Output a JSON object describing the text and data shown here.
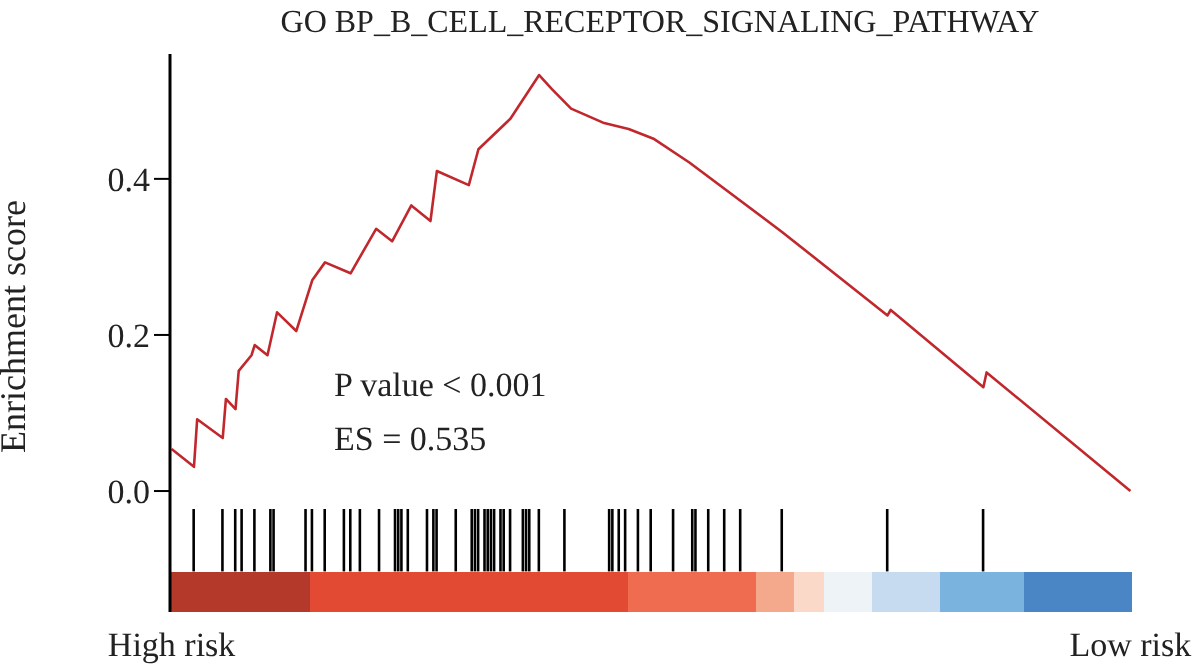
{
  "chart_data": {
    "type": "line",
    "title": "GO BP_B_CELL_RECEPTOR_SIGNALING_PATHWAY",
    "ylabel": "Enrichment score",
    "annotations": [
      "P value < 0.001",
      "ES = 0.535"
    ],
    "categories": [
      "High risk",
      null,
      null,
      null,
      null,
      null,
      null,
      null,
      null,
      null,
      null,
      null,
      null,
      null,
      null,
      null,
      null,
      null,
      null,
      null,
      null,
      null,
      null,
      null,
      null,
      null,
      null,
      null,
      null,
      null,
      null,
      null,
      null,
      null,
      null,
      null,
      null,
      null,
      null,
      null,
      null,
      null,
      null,
      null,
      null,
      null,
      null,
      null,
      null,
      null,
      null,
      null,
      null,
      null,
      null,
      null,
      null,
      null,
      null,
      null,
      null,
      null,
      null,
      null,
      null,
      null,
      null,
      null,
      null,
      null,
      null,
      null,
      null,
      null,
      null,
      null,
      null,
      null,
      null,
      null,
      null,
      null,
      null,
      null,
      null,
      null,
      null,
      null,
      null,
      null,
      null,
      null,
      null,
      null,
      null,
      null,
      null,
      null,
      null,
      null,
      null,
      null,
      null,
      null,
      null,
      null,
      null,
      null,
      null,
      null,
      null,
      null,
      null,
      null,
      null,
      null,
      null,
      null,
      null,
      null,
      null,
      null,
      null,
      null,
      null,
      null,
      null,
      null,
      null,
      null,
      null,
      null,
      null,
      null,
      null,
      null,
      null,
      null,
      null,
      null,
      null,
      null,
      null,
      null,
      null,
      null,
      null,
      null,
      null,
      null,
      null,
      null,
      null,
      null,
      null,
      null,
      null,
      null,
      null,
      null,
      null,
      null,
      null,
      null,
      null,
      null,
      null,
      null,
      null,
      null,
      null,
      null,
      null,
      null,
      null,
      null,
      null,
      null,
      null,
      null,
      null,
      null,
      null,
      null,
      null,
      null,
      null,
      null,
      null,
      null,
      null,
      null,
      null,
      null,
      null,
      null,
      null,
      null,
      null,
      null,
      null,
      null,
      null,
      null,
      null,
      null,
      null,
      null,
      null,
      null,
      null,
      null,
      null,
      null,
      null,
      null,
      null,
      null,
      null,
      null,
      null,
      null,
      null,
      null,
      null,
      null,
      null,
      null,
      null,
      null,
      null,
      null,
      null,
      null,
      null,
      null,
      null,
      null,
      null,
      null,
      null,
      null,
      null,
      null,
      null,
      null,
      null,
      null,
      null,
      null,
      null,
      null,
      null,
      null,
      null,
      null,
      null,
      null,
      null,
      null,
      null,
      null,
      null,
      null,
      null,
      null,
      null,
      null,
      null,
      null,
      null,
      null,
      null,
      null,
      null,
      null,
      null,
      null,
      null,
      null,
      null,
      null,
      null,
      null,
      null,
      null,
      null,
      null,
      null,
      null,
      null,
      null,
      null,
      null,
      null,
      null,
      null,
      null,
      null,
      null,
      "Low risk"
    ],
    "ylim": [
      -0.155,
      0.56
    ],
    "yticks": [
      {
        "value": 0,
        "label": "0.0"
      },
      0.2,
      0.4
    ],
    "marker": "none",
    "line_style": "solid",
    "series": [
      {
        "color": "#c0282d",
        "values": [
          0.054,
          null,
          null,
          null,
          null,
          null,
          null,
          0.031,
          0.092,
          null,
          null,
          null,
          null,
          null,
          null,
          null,
          0.068,
          0.118,
          null,
          null,
          0.105,
          0.154,
          null,
          null,
          null,
          0.174,
          0.187,
          null,
          null,
          null,
          0.174,
          null,
          null,
          0.229,
          null,
          null,
          null,
          null,
          null,
          0.205,
          null,
          null,
          null,
          null,
          0.27,
          null,
          null,
          null,
          0.293,
          null,
          null,
          null,
          null,
          null,
          null,
          null,
          0.279,
          null,
          null,
          null,
          null,
          null,
          null,
          null,
          0.336,
          null,
          null,
          null,
          null,
          0.32,
          null,
          null,
          null,
          null,
          null,
          0.366,
          null,
          null,
          null,
          null,
          null,
          0.346,
          null,
          0.41,
          null,
          null,
          null,
          null,
          null,
          null,
          null,
          null,
          null,
          0.392,
          null,
          null,
          0.438,
          null,
          null,
          null,
          null,
          null,
          null,
          null,
          null,
          null,
          0.477,
          null,
          null,
          null,
          null,
          null,
          null,
          null,
          null,
          0.533,
          null,
          null,
          null,
          0.515,
          null,
          null,
          null,
          null,
          null,
          0.49,
          null,
          null,
          null,
          null,
          null,
          null,
          null,
          null,
          null,
          0.472,
          null,
          null,
          null,
          null,
          null,
          null,
          null,
          0.464,
          null,
          null,
          null,
          null,
          null,
          null,
          null,
          0.451,
          null,
          null,
          null,
          null,
          null,
          null,
          null,
          null,
          null,
          null,
          0.421,
          null,
          null,
          null,
          null,
          null,
          null,
          null,
          null,
          null,
          null,
          null,
          null,
          null,
          null,
          null,
          null,
          null,
          null,
          null,
          null,
          null,
          null,
          null,
          null,
          null,
          null,
          null,
          null,
          0.332,
          null,
          null,
          null,
          null,
          null,
          null,
          null,
          null,
          null,
          null,
          null,
          null,
          null,
          null,
          null,
          null,
          null,
          null,
          null,
          null,
          null,
          null,
          null,
          null,
          null,
          null,
          null,
          null,
          null,
          null,
          null,
          null,
          0.225,
          0.232,
          null,
          null,
          null,
          null,
          null,
          null,
          null,
          null,
          null,
          null,
          null,
          null,
          null,
          null,
          null,
          null,
          null,
          null,
          null,
          null,
          null,
          null,
          null,
          null,
          null,
          null,
          null,
          null,
          0.133,
          0.152,
          null,
          null,
          null,
          null,
          null,
          null,
          null,
          null,
          null,
          null,
          null,
          null,
          null,
          null,
          null,
          null,
          null,
          null,
          null,
          null,
          null,
          null,
          null,
          null,
          null,
          null,
          null,
          null,
          null,
          null,
          null,
          null,
          null,
          null,
          null,
          null,
          null,
          null,
          null,
          null,
          null,
          null,
          null,
          null,
          0
        ]
      },
      {
        "type": "bar",
        "color": "#000000",
        "values": [
          null,
          null,
          null,
          null,
          null,
          null,
          null,
          0.08,
          null,
          null,
          null,
          null,
          null,
          null,
          null,
          null,
          0.08,
          null,
          null,
          null,
          0.08,
          null,
          0.08,
          null,
          null,
          null,
          0.08,
          null,
          null,
          null,
          null,
          0.08,
          0.08,
          null,
          null,
          null,
          null,
          null,
          null,
          null,
          null,
          null,
          0.08,
          null,
          0.08,
          null,
          null,
          null,
          0.08,
          null,
          null,
          null,
          null,
          null,
          0.08,
          null,
          0.08,
          null,
          null,
          0.08,
          null,
          null,
          null,
          null,
          null,
          0.08,
          null,
          null,
          null,
          null,
          0.08,
          0.08,
          0.08,
          null,
          0.08,
          null,
          null,
          null,
          null,
          null,
          0.08,
          null,
          0.08,
          0.08,
          null,
          null,
          null,
          null,
          null,
          0.08,
          null,
          null,
          null,
          null,
          0.08,
          0.08,
          0.08,
          null,
          0.08,
          0.08,
          0.08,
          0.08,
          null,
          0.08,
          0.08,
          null,
          0.08,
          null,
          null,
          null,
          0.08,
          0.08,
          0.08,
          null,
          null,
          0.08,
          null,
          null,
          null,
          null,
          null,
          null,
          null,
          0.08,
          null,
          null,
          null,
          null,
          null,
          null,
          null,
          null,
          null,
          null,
          null,
          null,
          null,
          0.08,
          0.08,
          null,
          0.08,
          null,
          0.08,
          null,
          null,
          null,
          0.08,
          null,
          null,
          null,
          0.08,
          null,
          null,
          null,
          null,
          null,
          null,
          0.08,
          null,
          null,
          null,
          null,
          null,
          0.08,
          0.08,
          null,
          null,
          null,
          0.08,
          null,
          null,
          null,
          null,
          0.08,
          null,
          null,
          null,
          null,
          0.08,
          null,
          null,
          null,
          null,
          null,
          null,
          null,
          null,
          null,
          null,
          null,
          null,
          0.08,
          null,
          null,
          null,
          null,
          null,
          null,
          null,
          null,
          null,
          null,
          null,
          null,
          null,
          null,
          null,
          null,
          null,
          null,
          null,
          null,
          null,
          null,
          null,
          null,
          null,
          null,
          null,
          null,
          null,
          null,
          null,
          null,
          0.08,
          null,
          null,
          null,
          null,
          null,
          null,
          null,
          null,
          null,
          null,
          null,
          null,
          null,
          null,
          null,
          null,
          null,
          null,
          null,
          null,
          null,
          null,
          null,
          null,
          null,
          null,
          null,
          null,
          null,
          0.08,
          null,
          null,
          null,
          null,
          null,
          null,
          null,
          null,
          null,
          null,
          null,
          null,
          null,
          null,
          null,
          null,
          null,
          null,
          null,
          null,
          null,
          null,
          null,
          null,
          null,
          null,
          null,
          null,
          null,
          null,
          null,
          null,
          null,
          null,
          null,
          null,
          null,
          null,
          null,
          null,
          null,
          null,
          null,
          null,
          null,
          null
        ],
        "base": [
          null,
          null,
          null,
          null,
          null,
          null,
          null,
          -0.103,
          null,
          null,
          null,
          null,
          null,
          null,
          null,
          null,
          -0.103,
          null,
          null,
          null,
          -0.103,
          null,
          -0.103,
          null,
          null,
          null,
          -0.103,
          null,
          null,
          null,
          null,
          -0.103,
          -0.103,
          null,
          null,
          null,
          null,
          null,
          null,
          null,
          null,
          null,
          -0.103,
          null,
          -0.103,
          null,
          null,
          null,
          -0.103,
          null,
          null,
          null,
          null,
          null,
          -0.103,
          null,
          -0.103,
          null,
          null,
          -0.103,
          null,
          null,
          null,
          null,
          null,
          -0.103,
          null,
          null,
          null,
          null,
          -0.103,
          -0.103,
          -0.103,
          null,
          -0.103,
          null,
          null,
          null,
          null,
          null,
          -0.103,
          null,
          -0.103,
          -0.103,
          null,
          null,
          null,
          null,
          null,
          -0.103,
          null,
          null,
          null,
          null,
          -0.103,
          -0.103,
          -0.103,
          null,
          -0.103,
          -0.103,
          -0.103,
          -0.103,
          null,
          -0.103,
          -0.103,
          null,
          -0.103,
          null,
          null,
          null,
          -0.103,
          -0.103,
          -0.103,
          null,
          null,
          -0.103,
          null,
          null,
          null,
          null,
          null,
          null,
          null,
          -0.103,
          null,
          null,
          null,
          null,
          null,
          null,
          null,
          null,
          null,
          null,
          null,
          null,
          null,
          -0.103,
          -0.103,
          null,
          -0.103,
          null,
          -0.103,
          null,
          null,
          null,
          -0.103,
          null,
          null,
          null,
          -0.103,
          null,
          null,
          null,
          null,
          null,
          null,
          -0.103,
          null,
          null,
          null,
          null,
          null,
          -0.103,
          -0.103,
          null,
          null,
          null,
          -0.103,
          null,
          null,
          null,
          null,
          -0.103,
          null,
          null,
          null,
          null,
          -0.103,
          null,
          null,
          null,
          null,
          null,
          null,
          null,
          null,
          null,
          null,
          null,
          null,
          -0.103,
          null,
          null,
          null,
          null,
          null,
          null,
          null,
          null,
          null,
          null,
          null,
          null,
          null,
          null,
          null,
          null,
          null,
          null,
          null,
          null,
          null,
          null,
          null,
          null,
          null,
          null,
          null,
          null,
          null,
          null,
          null,
          null,
          -0.103,
          null,
          null,
          null,
          null,
          null,
          null,
          null,
          null,
          null,
          null,
          null,
          null,
          null,
          null,
          null,
          null,
          null,
          null,
          null,
          null,
          null,
          null,
          null,
          null,
          null,
          null,
          null,
          null,
          null,
          -0.103,
          null,
          null,
          null,
          null,
          null,
          null,
          null,
          null,
          null,
          null,
          null,
          null,
          null,
          null,
          null,
          null,
          null,
          null,
          null,
          null,
          null,
          null,
          null,
          null,
          null,
          null,
          null,
          null,
          null,
          null,
          null,
          null,
          null,
          null,
          null,
          null,
          null,
          null,
          null,
          null,
          null,
          null,
          null,
          null,
          null,
          null
        ]
      }
    ]
  }
}
